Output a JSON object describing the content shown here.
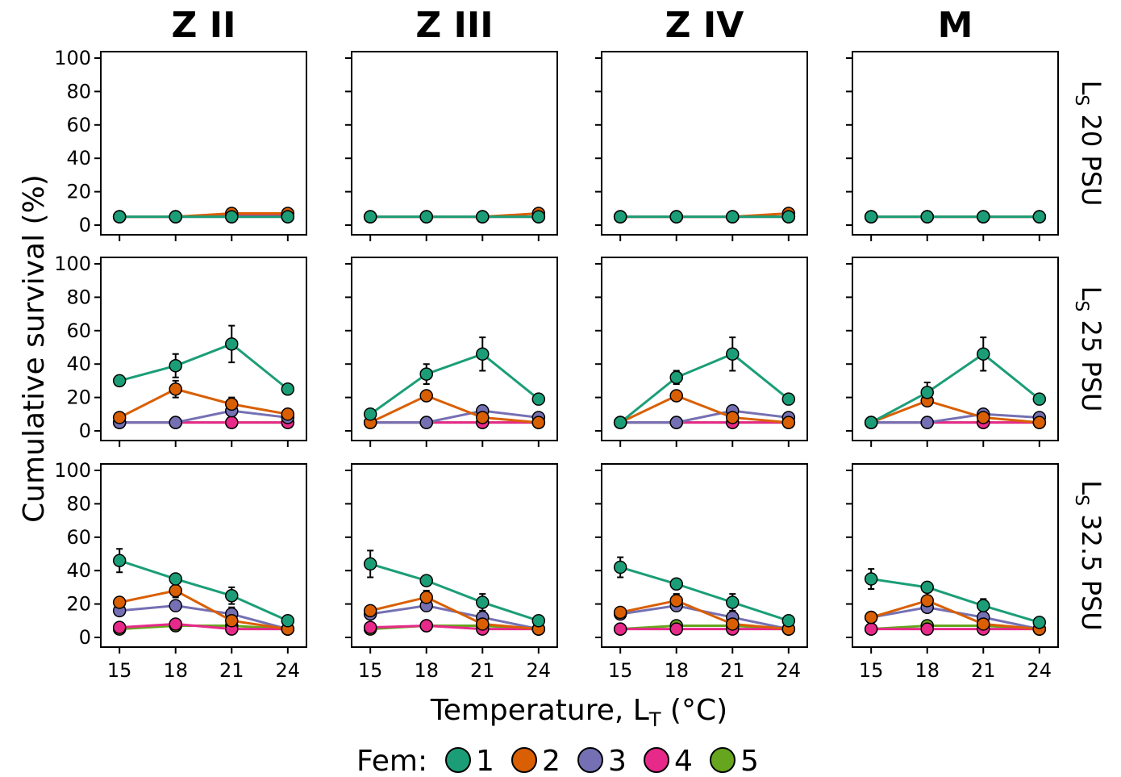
{
  "chart_data": {
    "type": "line",
    "layout": "facet-grid 3 rows x 4 columns",
    "x_values": [
      15,
      18,
      21,
      24
    ],
    "x_ticks": [
      "15",
      "18",
      "21",
      "24"
    ],
    "y_ticks": [
      "0",
      "20",
      "40",
      "60",
      "80",
      "100"
    ],
    "ylim": [
      0,
      100
    ],
    "ylabel": "Cumulative survival (%)",
    "xlabel": {
      "main": "Temperature, L",
      "sub": "T",
      "after": " (°C)"
    },
    "column_titles": [
      "Z II",
      "Z III",
      "Z IV",
      "M"
    ],
    "row_titles": [
      {
        "main": "L",
        "sub": "S",
        "after": " 20 PSU"
      },
      {
        "main": "L",
        "sub": "S",
        "after": " 25 PSU"
      },
      {
        "main": "L",
        "sub": "S",
        "after": " 32.5 PSU"
      }
    ],
    "legend": {
      "title": "Fem:",
      "position": "bottom",
      "items": [
        {
          "label": "1",
          "color": "#1b9e77"
        },
        {
          "label": "2",
          "color": "#d95f02"
        },
        {
          "label": "3",
          "color": "#7570b3"
        },
        {
          "label": "4",
          "color": "#e7298a"
        },
        {
          "label": "5",
          "color": "#66a61e"
        }
      ]
    },
    "grid": false,
    "series_colors": {
      "1": "#1b9e77",
      "2": "#d95f02",
      "3": "#7570b3",
      "4": "#e7298a",
      "5": "#66a61e"
    },
    "panels": [
      [
        {
          "row": 0,
          "col": 0,
          "series": [
            {
              "fem": "1",
              "values": [
                5,
                5,
                5,
                5
              ],
              "err": [
                0,
                0,
                0,
                0
              ]
            },
            {
              "fem": "2",
              "values": [
                5,
                5,
                7,
                7
              ],
              "err": [
                0,
                0,
                0,
                0
              ]
            },
            {
              "fem": "3",
              "values": [
                5,
                5,
                5,
                5
              ],
              "err": [
                0,
                0,
                0,
                0
              ]
            },
            {
              "fem": "4",
              "values": [
                5,
                5,
                6,
                6
              ],
              "err": [
                0,
                0,
                0,
                0
              ]
            },
            {
              "fem": "5",
              "values": [
                5,
                5,
                5,
                5
              ],
              "err": [
                0,
                0,
                0,
                0
              ]
            }
          ]
        },
        {
          "row": 0,
          "col": 1,
          "series": [
            {
              "fem": "1",
              "values": [
                5,
                5,
                5,
                5
              ],
              "err": [
                0,
                0,
                0,
                0
              ]
            },
            {
              "fem": "2",
              "values": [
                5,
                5,
                5,
                7
              ],
              "err": [
                0,
                0,
                0,
                0
              ]
            },
            {
              "fem": "3",
              "values": [
                5,
                5,
                5,
                5
              ],
              "err": [
                0,
                0,
                0,
                0
              ]
            },
            {
              "fem": "4",
              "values": [
                5,
                5,
                5,
                5
              ],
              "err": [
                0,
                0,
                0,
                0
              ]
            },
            {
              "fem": "5",
              "values": [
                5,
                5,
                5,
                5
              ],
              "err": [
                0,
                0,
                0,
                0
              ]
            }
          ]
        },
        {
          "row": 0,
          "col": 2,
          "series": [
            {
              "fem": "1",
              "values": [
                5,
                5,
                5,
                5
              ],
              "err": [
                0,
                0,
                0,
                0
              ]
            },
            {
              "fem": "2",
              "values": [
                5,
                5,
                5,
                7
              ],
              "err": [
                0,
                0,
                0,
                0
              ]
            },
            {
              "fem": "3",
              "values": [
                5,
                5,
                5,
                5
              ],
              "err": [
                0,
                0,
                0,
                0
              ]
            },
            {
              "fem": "4",
              "values": [
                5,
                5,
                5,
                5
              ],
              "err": [
                0,
                0,
                0,
                0
              ]
            },
            {
              "fem": "5",
              "values": [
                5,
                5,
                5,
                5
              ],
              "err": [
                0,
                0,
                0,
                0
              ]
            }
          ]
        },
        {
          "row": 0,
          "col": 3,
          "series": [
            {
              "fem": "1",
              "values": [
                5,
                5,
                5,
                5
              ],
              "err": [
                0,
                0,
                0,
                0
              ]
            },
            {
              "fem": "2",
              "values": [
                5,
                5,
                5,
                5
              ],
              "err": [
                0,
                0,
                0,
                0
              ]
            },
            {
              "fem": "3",
              "values": [
                5,
                5,
                5,
                5
              ],
              "err": [
                0,
                0,
                0,
                0
              ]
            },
            {
              "fem": "4",
              "values": [
                5,
                5,
                5,
                5
              ],
              "err": [
                0,
                0,
                0,
                0
              ]
            },
            {
              "fem": "5",
              "values": [
                5,
                5,
                5,
                5
              ],
              "err": [
                0,
                0,
                0,
                0
              ]
            }
          ]
        }
      ],
      [
        {
          "row": 1,
          "col": 0,
          "series": [
            {
              "fem": "1",
              "values": [
                30,
                39,
                52,
                25
              ],
              "err": [
                3,
                7,
                11,
                0
              ]
            },
            {
              "fem": "2",
              "values": [
                8,
                25,
                16,
                10
              ],
              "err": [
                0,
                5,
                4,
                0
              ]
            },
            {
              "fem": "3",
              "values": [
                5,
                5,
                12,
                8
              ],
              "err": [
                0,
                0,
                2,
                0
              ]
            },
            {
              "fem": "4",
              "values": [
                5,
                5,
                5,
                5
              ],
              "err": [
                0,
                0,
                0,
                0
              ]
            },
            {
              "fem": "5",
              "values": [
                5,
                5,
                5,
                5
              ],
              "err": [
                0,
                0,
                0,
                0
              ]
            }
          ]
        },
        {
          "row": 1,
          "col": 1,
          "series": [
            {
              "fem": "1",
              "values": [
                10,
                34,
                46,
                19
              ],
              "err": [
                0,
                6,
                10,
                0
              ]
            },
            {
              "fem": "2",
              "values": [
                5,
                21,
                8,
                5
              ],
              "err": [
                0,
                2,
                0,
                0
              ]
            },
            {
              "fem": "3",
              "values": [
                5,
                5,
                12,
                8
              ],
              "err": [
                0,
                0,
                2,
                0
              ]
            },
            {
              "fem": "4",
              "values": [
                5,
                5,
                5,
                5
              ],
              "err": [
                0,
                0,
                0,
                0
              ]
            },
            {
              "fem": "5",
              "values": [
                5,
                5,
                5,
                5
              ],
              "err": [
                0,
                0,
                0,
                0
              ]
            }
          ]
        },
        {
          "row": 1,
          "col": 2,
          "series": [
            {
              "fem": "1",
              "values": [
                5,
                32,
                46,
                19
              ],
              "err": [
                0,
                4,
                10,
                0
              ]
            },
            {
              "fem": "2",
              "values": [
                5,
                21,
                8,
                5
              ],
              "err": [
                0,
                2,
                0,
                0
              ]
            },
            {
              "fem": "3",
              "values": [
                5,
                5,
                12,
                8
              ],
              "err": [
                0,
                0,
                2,
                0
              ]
            },
            {
              "fem": "4",
              "values": [
                5,
                5,
                5,
                5
              ],
              "err": [
                0,
                0,
                0,
                0
              ]
            },
            {
              "fem": "5",
              "values": [
                5,
                5,
                5,
                5
              ],
              "err": [
                0,
                0,
                0,
                0
              ]
            }
          ]
        },
        {
          "row": 1,
          "col": 3,
          "series": [
            {
              "fem": "1",
              "values": [
                5,
                23,
                46,
                19
              ],
              "err": [
                0,
                6,
                10,
                0
              ]
            },
            {
              "fem": "2",
              "values": [
                5,
                18,
                8,
                5
              ],
              "err": [
                0,
                3,
                0,
                0
              ]
            },
            {
              "fem": "3",
              "values": [
                5,
                5,
                10,
                8
              ],
              "err": [
                0,
                0,
                2,
                0
              ]
            },
            {
              "fem": "4",
              "values": [
                5,
                5,
                5,
                5
              ],
              "err": [
                0,
                0,
                0,
                0
              ]
            },
            {
              "fem": "5",
              "values": [
                5,
                5,
                5,
                5
              ],
              "err": [
                0,
                0,
                0,
                0
              ]
            }
          ]
        }
      ],
      [
        {
          "row": 2,
          "col": 0,
          "series": [
            {
              "fem": "1",
              "values": [
                46,
                35,
                25,
                10
              ],
              "err": [
                7,
                0,
                5,
                0
              ]
            },
            {
              "fem": "2",
              "values": [
                21,
                28,
                10,
                5
              ],
              "err": [
                0,
                4,
                0,
                0
              ]
            },
            {
              "fem": "3",
              "values": [
                16,
                19,
                14,
                5
              ],
              "err": [
                0,
                3,
                4,
                0
              ]
            },
            {
              "fem": "4",
              "values": [
                6,
                8,
                5,
                5
              ],
              "err": [
                0,
                2,
                0,
                0
              ]
            },
            {
              "fem": "5",
              "values": [
                5,
                7,
                7,
                5
              ],
              "err": [
                0,
                0,
                0,
                0
              ]
            }
          ]
        },
        {
          "row": 2,
          "col": 1,
          "series": [
            {
              "fem": "1",
              "values": [
                44,
                34,
                21,
                10
              ],
              "err": [
                8,
                0,
                5,
                0
              ]
            },
            {
              "fem": "2",
              "values": [
                16,
                24,
                8,
                5
              ],
              "err": [
                0,
                4,
                0,
                0
              ]
            },
            {
              "fem": "3",
              "values": [
                14,
                19,
                12,
                5
              ],
              "err": [
                0,
                3,
                2,
                0
              ]
            },
            {
              "fem": "4",
              "values": [
                6,
                7,
                5,
                5
              ],
              "err": [
                0,
                0,
                0,
                0
              ]
            },
            {
              "fem": "5",
              "values": [
                5,
                7,
                7,
                5
              ],
              "err": [
                0,
                0,
                0,
                0
              ]
            }
          ]
        },
        {
          "row": 2,
          "col": 2,
          "series": [
            {
              "fem": "1",
              "values": [
                42,
                32,
                21,
                10
              ],
              "err": [
                6,
                0,
                5,
                0
              ]
            },
            {
              "fem": "2",
              "values": [
                15,
                22,
                8,
                5
              ],
              "err": [
                0,
                4,
                0,
                0
              ]
            },
            {
              "fem": "3",
              "values": [
                14,
                19,
                12,
                5
              ],
              "err": [
                0,
                3,
                2,
                0
              ]
            },
            {
              "fem": "4",
              "values": [
                5,
                5,
                5,
                5
              ],
              "err": [
                0,
                0,
                0,
                0
              ]
            },
            {
              "fem": "5",
              "values": [
                5,
                7,
                7,
                5
              ],
              "err": [
                0,
                0,
                0,
                0
              ]
            }
          ]
        },
        {
          "row": 2,
          "col": 3,
          "series": [
            {
              "fem": "1",
              "values": [
                35,
                30,
                19,
                9
              ],
              "err": [
                6,
                0,
                4,
                0
              ]
            },
            {
              "fem": "2",
              "values": [
                12,
                22,
                8,
                5
              ],
              "err": [
                0,
                5,
                0,
                0
              ]
            },
            {
              "fem": "3",
              "values": [
                12,
                18,
                12,
                5
              ],
              "err": [
                0,
                3,
                2,
                0
              ]
            },
            {
              "fem": "4",
              "values": [
                5,
                5,
                5,
                5
              ],
              "err": [
                0,
                0,
                0,
                0
              ]
            },
            {
              "fem": "5",
              "values": [
                5,
                7,
                7,
                5
              ],
              "err": [
                0,
                0,
                0,
                0
              ]
            }
          ]
        }
      ]
    ]
  }
}
